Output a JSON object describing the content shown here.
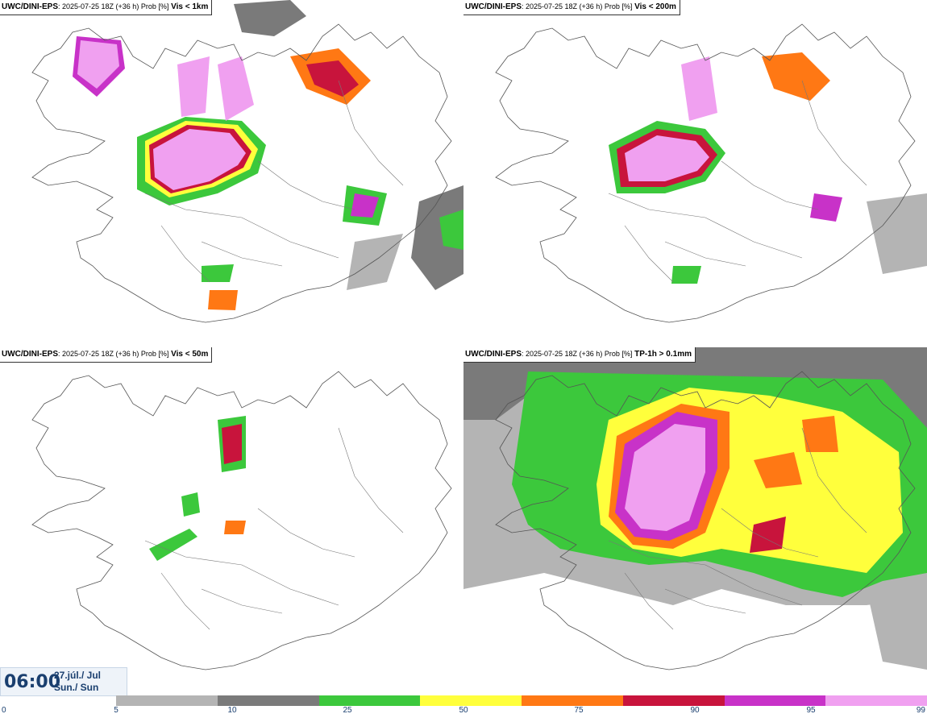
{
  "panels": [
    {
      "model": "UWC/DINI-EPS",
      "meta": ": 2025-07-25 18Z (+36 h) Prob [%]",
      "variable": "Vis < 1km"
    },
    {
      "model": "UWC/DINI-EPS",
      "meta": ": 2025-07-25 18Z (+36 h) Prob [%]",
      "variable": "Vis < 200m"
    },
    {
      "model": "UWC/DINI-EPS",
      "meta": ": 2025-07-25 18Z (+36 h) Prob [%]",
      "variable": "Vis < 50m"
    },
    {
      "model": "UWC/DINI-EPS",
      "meta": ": 2025-07-25 18Z (+36 h) Prob [%]",
      "variable": "TP-1h > 0.1mm"
    }
  ],
  "valid_time": {
    "clock": "06:00",
    "date_line1": "27.júl./ Jul",
    "date_line2": "Sun./ Sun"
  },
  "legend": {
    "ticks": [
      "0",
      "5",
      "10",
      "25",
      "50",
      "75",
      "90",
      "95",
      "99"
    ],
    "colors": [
      "#b4b4b4",
      "#7a7a7a",
      "#3cc83c",
      "#ffff3c",
      "#ff7814",
      "#c8143c",
      "#c832c8",
      "#f0a0f0"
    ]
  }
}
